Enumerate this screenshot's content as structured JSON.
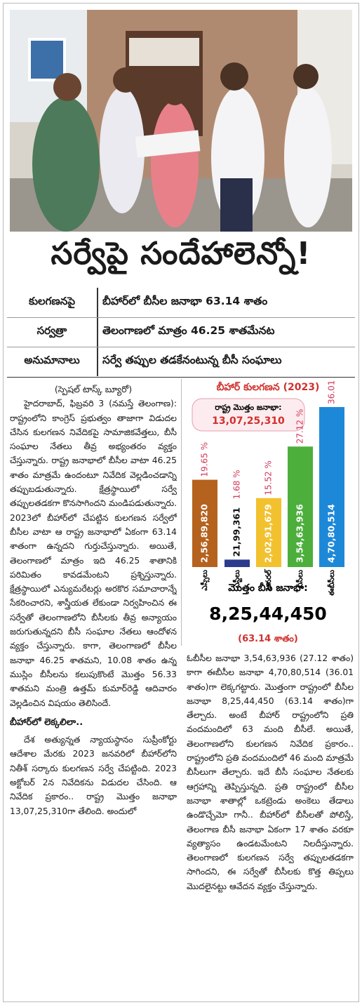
{
  "headline": "సర్వేపై సందేహాలెన్నో!",
  "deck": {
    "left": [
      "కులగణనపై",
      "సర్వత్రా",
      "అనుమానాలు"
    ],
    "right": [
      "బీహార్‌లో బీసీల జనాభా 63.14 శాతం",
      "తెలంగాణలో మాత్రం 46.25 శాతమేనట",
      "సర్వే తప్పుల తడకేనంటున్న బీసీ సంఘాలు"
    ]
  },
  "byline": "(స్పెషల్ టాస్క్ బ్యూరో)",
  "body": {
    "p1": "హైదరాబాద్, ఫిబ్రవరి 3 (నమస్తే తెలంగాణ): రాష్ట్రంలోని కాంగ్రెస్ ప్రభుత్వం తాజాగా విడుదల చేసిన కులగణన నివేదికపై సామాజికవేత్తలు, బీసీ సంఘాల నేతలు తీవ్ర అభ్యంతరం వ్యక్తం చేస్తున్నారు. రాష్ట్ర జనాభాలో బీసీల వాటా 46.25 శాతం మాత్రమే ఉందంటూ నివేదిక వెల్లడించడాన్ని తప్పుబడుతున్నారు. క్షేత్రస్థాయిలో సర్వే తప్పులతడకగా కొనసాగిందని మండిపడుతున్నారు. 2023లో బీహార్‌లో చేపట్టిన కులగణన సర్వేలో బీసీల వాటా ఆ రాష్ట్ర జనాభాలో ఏకంగా 63.14 శాతంగా ఉన్నదని గుర్తుచేస్తున్నారు. అయితే, తెలంగాణలో మాత్రం ఇది 46.25 శాతానికి పరిమితం కావడమేంటని ప్రశ్నిస్తున్నారు. క్షేత్రస్థాయిలో ఎన్యుమరేటర్లు అరకొర సమాచారాన్నే సేకరించారని, శాస్త్రీయత లేకుండా నిర్వహించిన ఈ సర్వేతో తెలంగాణలోని బీసీలకు తీవ్ర అన్యాయం జరుగుతున్నదని బీసీ సంఘాల నేతలు ఆందోళన వ్యక్తం చేస్తున్నారు. కాగా, తెలంగాణలో బీసీల జనాభా 46.25 శాతమని, 10.08 శాతం ఉన్న ముస్లిం బీసీలను కలుపుకొంటే మొత్తం 56.33 శాతమని మంత్రి ఉత్తమ్ కుమార్‌రెడ్డి ఆదివారం వెల్లడించిన విషయం తెలిసిందే.",
    "subhead": "బీహార్‌లో లెక్కలిలా..",
    "p2": "దేశ అత్యున్నత న్యాయస్థానం సుప్రీంకోర్టు ఆదేశాల మేరకు 2023 జనవరిలో బీహార్‌లోని నితీశ్ సర్కారు కులగణన సర్వే చేపట్టింది. 2023 అక్టోబర్ 2న నివేదికను విడుదల చేసింది. ఆ నివేదిక ప్రకారం.. రాష్ట్ర మొత్తం జనాభా 13,07,25,310గా తేలింది. అందులో",
    "p3": "ఓబీసీల జనాభా 3,54,63,936 (27.12 శాతం) కాగా ఈబీసీల జనాభా 4,70,80,514 (36.01 శాతం)గా లెక్కగట్టారు. మొత్తంగా రాష్ట్రంలో బీసీల జనాభా 8,25,44,450 (63.14 శాతం)గా తేల్చారు. అంటే బీహార్ రాష్ట్రంలోని ప్రతి వందమందిలో 63 మంది బీసీలే. అయితే, తెలంగాణలోని కులగణన నివేదిక ప్రకారం.. రాష్ట్రంలోని ప్రతి వందమందిలో 46 మంది మాత్రమే బీసీలుగా తేల్చారు. ఇదే బీసీ సంఘాల నేతలకు ఆగ్రహాన్ని తెప్పిస్తున్నది. ప్రతి రాష్ట్రంలో బీసీల జనాభా శాతాల్లో ఒకట్రెండు అంకెలు తేడాలు ఉండొచ్చేమో గానీ.. బీహార్‌లో బీసీలతో పోలిస్తే, తెలంగాణ బీసీ జనాభా ఏకంగా 17 శాతం వరకూ వ్యత్యాసం ఉండటమేంటని నిలదీస్తున్నారు. తెలంగాణలో కులగణన సర్వే తప్పులతడకగా సాగిందని, ఈ సర్వేతో బీసీలకు కొత్త తిప్పలు మొదలైనట్టు ఆవేదన వ్యక్తం చేస్తున్నారు."
  },
  "chart_data": {
    "type": "bar",
    "title": "బీహార్ కులగణన (2023)",
    "total_caption": "రాష్ట్ర మొత్తం జనాభా:",
    "total_text": "13,07,25,310",
    "categories": [
      "ఎస్సీలు",
      "ఎస్టీలు",
      "జనరల్",
      "బీసీలు",
      "ఈబీసీలు"
    ],
    "values": [
      19.65,
      1.68,
      15.52,
      27.12,
      36.01
    ],
    "value_labels": [
      "19.65 %",
      "1.68 %",
      "15.52 %",
      "27.12 %",
      "36.01 %"
    ],
    "bar_texts": [
      "2,56,89,820",
      "21,99,361",
      "2,02,91,679",
      "3,54,63,936",
      "4,70,80,514"
    ],
    "colors": [
      "#b5621e",
      "#2b3a8c",
      "#f2c12e",
      "#4caf3c",
      "#1e88d8"
    ],
    "bc_caption": "మొత్తం బీసీ జనాభా:",
    "bc_total": "8,25,44,450",
    "bc_share": "(63.14 శాతం)"
  }
}
